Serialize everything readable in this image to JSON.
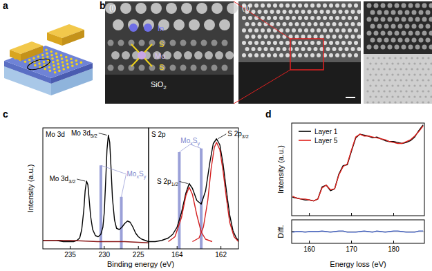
{
  "panel_labels": [
    "a",
    "b",
    "c",
    "d"
  ],
  "panel_b": {
    "image_i_label": "(i)",
    "image_ii_label": "(ii)",
    "atom_labels": [
      {
        "text": "In"
      },
      {
        "text": "S"
      },
      {
        "text": "Mo"
      },
      {
        "text": "S"
      },
      {
        "text": "SiO",
        "sub": "2"
      }
    ]
  },
  "chart_data": [
    {
      "type": "line",
      "title": "Mo 3d",
      "xlabel": "Binding energy (eV)",
      "ylabel": "Intensity (a.u.)",
      "xlim": [
        239,
        223.5
      ],
      "xticks": [
        235,
        230,
        225
      ],
      "ylim": [
        0,
        100
      ],
      "tick_labels": "x",
      "series": [
        {
          "color": "#000000",
          "x": [
            239,
            238,
            237,
            236,
            235,
            234.5,
            234,
            233.6,
            233.3,
            233.0,
            232.8,
            232.6,
            232.4,
            232.2,
            232.0,
            231.7,
            231.3,
            230.9,
            230.5,
            230.2,
            230.0,
            229.8,
            229.6,
            229.4,
            229.2,
            229.0,
            228.8,
            228.5,
            228.2,
            227.8,
            227.4,
            227.0,
            226.6,
            226.2,
            225.8,
            225.4,
            225.0,
            224.5,
            224,
            223.5
          ],
          "values": [
            7,
            7,
            7,
            6,
            6,
            6,
            7,
            9,
            16,
            32,
            48,
            56,
            53,
            40,
            27,
            16,
            11,
            10,
            12,
            18,
            30,
            55,
            82,
            94,
            88,
            66,
            42,
            24,
            17,
            16,
            18,
            21,
            23,
            22,
            18,
            13,
            10,
            8,
            7,
            6
          ]
        },
        {
          "color": "#8b1a1a",
          "x": [
            239,
            235,
            231,
            227,
            223.5
          ],
          "values": [
            7,
            7,
            6,
            6,
            5
          ]
        }
      ],
      "markers": {
        "label": [
          {
            "text": "Mo",
            "sub": "x"
          },
          {
            "text": "S",
            "sub": "y"
          }
        ],
        "color": "#9aa0d8",
        "x": [
          230.5,
          227.5
        ],
        "values": [
          69,
          43
        ]
      },
      "annotations": [
        {
          "parts": [
            {
              "text": "Mo 3d",
              "sub": "3/2"
            }
          ],
          "x": 232.6,
          "y": 56
        },
        {
          "parts": [
            {
              "text": "Mo 3d",
              "sub": "5/2"
            }
          ],
          "x": 229.4,
          "y": 94
        }
      ]
    },
    {
      "type": "line",
      "title": "S 2p",
      "xlim": [
        165.3,
        161.2
      ],
      "xticks": [
        164,
        162
      ],
      "ylim": [
        0,
        100
      ],
      "tick_labels": "x",
      "series": [
        {
          "color": "#000000",
          "x": [
            165.3,
            165.0,
            164.7,
            164.4,
            164.2,
            164.0,
            163.8,
            163.6,
            163.45,
            163.3,
            163.1,
            162.9,
            162.7,
            162.5,
            162.35,
            162.2,
            162.05,
            161.9,
            161.75,
            161.6,
            161.45,
            161.3,
            161.2
          ],
          "values": [
            6,
            6,
            7,
            9,
            12,
            18,
            30,
            46,
            54,
            50,
            40,
            37,
            48,
            72,
            87,
            91,
            86,
            70,
            48,
            28,
            15,
            9,
            7
          ]
        },
        {
          "color": "#d42020",
          "x": [
            164.4,
            164.1,
            163.8,
            163.6,
            163.45,
            163.3,
            163.1,
            162.9,
            162.7,
            162.4
          ],
          "values": [
            6,
            10,
            26,
            44,
            51,
            45,
            28,
            14,
            8,
            6
          ]
        },
        {
          "color": "#d42020",
          "x": [
            163.3,
            163.0,
            162.8,
            162.6,
            162.45,
            162.3,
            162.2,
            162.05,
            161.9,
            161.75,
            161.6,
            161.4,
            161.2
          ],
          "values": [
            6,
            9,
            18,
            40,
            66,
            84,
            88,
            82,
            64,
            42,
            22,
            10,
            6
          ]
        }
      ],
      "markers": {
        "label": [
          {
            "text": "Mo",
            "sub": "x"
          },
          {
            "text": "S",
            "sub": "y"
          }
        ],
        "color": "#9aa0d8",
        "x": [
          163.9,
          162.9
        ],
        "values": [
          80,
          83
        ]
      },
      "annotations": [
        {
          "parts": [
            {
              "text": "S 2p",
              "sub": "1/2"
            }
          ],
          "x": 163.45,
          "y": 54
        },
        {
          "parts": [
            {
              "text": "S 2p",
              "sub": "3/2"
            }
          ],
          "x": 162.2,
          "y": 91
        }
      ]
    },
    {
      "type": "line",
      "ylabel": "Intensity (a.u.)",
      "xlim": [
        155.8,
        187.3
      ],
      "xticks": [
        160,
        170,
        180
      ],
      "ylim": [
        0,
        100
      ],
      "tick_labels": false,
      "legend": "upper left",
      "series": [
        {
          "name": "Layer 1",
          "color": "#000000",
          "x": [
            156,
            157,
            158,
            159,
            160,
            161,
            162,
            163,
            164,
            165,
            166,
            167,
            168,
            169,
            170,
            171,
            172,
            173,
            174,
            175,
            176,
            177,
            178,
            179,
            180,
            181,
            182,
            183,
            184,
            185,
            186,
            187
          ],
          "values": [
            20,
            19,
            18,
            17,
            17,
            16,
            18,
            31,
            33,
            27,
            29,
            45,
            54,
            55,
            70,
            84,
            88,
            87,
            86,
            84,
            85,
            83,
            81,
            80,
            80,
            79,
            78,
            79,
            81,
            85,
            92,
            98
          ]
        },
        {
          "name": "Layer 5",
          "color": "#e0201b",
          "x": [
            156,
            157,
            158,
            159,
            160,
            161,
            162,
            163,
            164,
            165,
            166,
            167,
            168,
            169,
            170,
            171,
            172,
            173,
            174,
            175,
            176,
            177,
            178,
            179,
            180,
            181,
            182,
            183,
            184,
            185,
            186,
            187
          ],
          "values": [
            21,
            19,
            18,
            18,
            17,
            16,
            18,
            30,
            33,
            28,
            29,
            44,
            53,
            56,
            71,
            85,
            88,
            86,
            86,
            85,
            84,
            83,
            82,
            80,
            79,
            78,
            78,
            80,
            82,
            86,
            91,
            97
          ]
        }
      ]
    },
    {
      "type": "line",
      "ylabel": "Diff.",
      "xlabel": "Energy loss (eV)",
      "xlim": [
        155.8,
        187.3
      ],
      "xticks": [
        160,
        170,
        180
      ],
      "ylim": [
        -20,
        20
      ],
      "yticks": [
        0
      ],
      "grid": true,
      "tick_labels": "x",
      "series": [
        {
          "color": "#3b5bbf",
          "x": [
            156,
            157,
            158,
            159,
            160,
            161,
            162,
            163,
            164,
            165,
            166,
            167,
            168,
            169,
            170,
            171,
            172,
            173,
            174,
            175,
            176,
            177,
            178,
            179,
            180,
            181,
            182,
            183,
            184,
            185,
            186,
            187
          ],
          "values": [
            -1,
            0,
            0,
            -1,
            0,
            0,
            0,
            1,
            0,
            -1,
            0,
            1,
            1,
            -1,
            -1,
            -1,
            0,
            1,
            0,
            -1,
            1,
            0,
            -1,
            0,
            1,
            1,
            0,
            -1,
            -1,
            -1,
            1,
            1
          ]
        }
      ]
    }
  ]
}
